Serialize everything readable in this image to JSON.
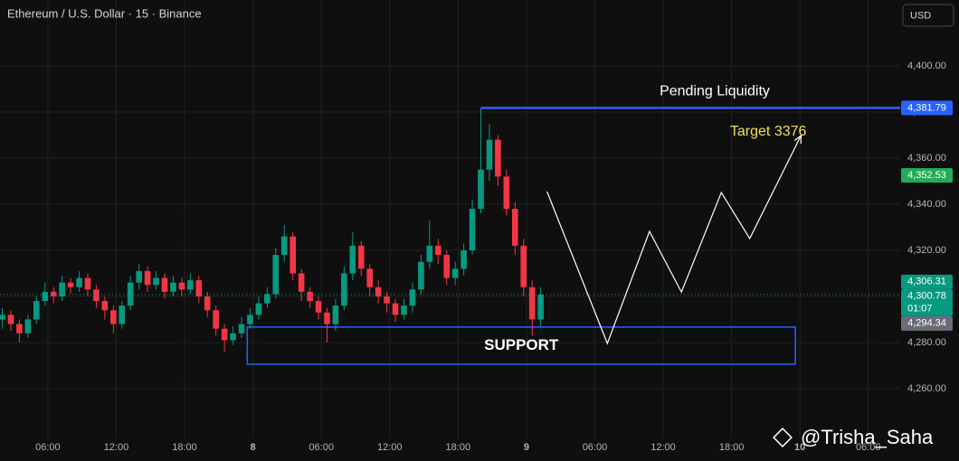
{
  "chart_data": {
    "type": "candlestick",
    "title": "Ethereum / U.S. Dollar · 15 · Binance",
    "currency_button": "USD",
    "xlim": [
      1.8,
      80.8
    ],
    "ylim": [
      4238.4,
      4428.6
    ],
    "xticks": [
      {
        "value": 6,
        "label": "06:00"
      },
      {
        "value": 12,
        "label": "12:00"
      },
      {
        "value": 18,
        "label": "18:00"
      },
      {
        "value": 24,
        "label": "8"
      },
      {
        "value": 30,
        "label": "06:00"
      },
      {
        "value": 36,
        "label": "12:00"
      },
      {
        "value": 42,
        "label": "18:00"
      },
      {
        "value": 48,
        "label": "9"
      },
      {
        "value": 54,
        "label": "06:00"
      },
      {
        "value": 60,
        "label": "12:00"
      },
      {
        "value": 66,
        "label": "18:00"
      },
      {
        "value": 72,
        "label": "10"
      },
      {
        "value": 78,
        "label": "06:00"
      }
    ],
    "yticks": [
      {
        "value": 4260,
        "label": "4,260.00"
      },
      {
        "value": 4280,
        "label": "4,280.00"
      },
      {
        "value": 4300,
        "label": "4,300.00"
      },
      {
        "value": 4320,
        "label": "4,320.00"
      },
      {
        "value": 4340,
        "label": "4,340.00"
      },
      {
        "value": 4360,
        "label": "4,360.00"
      },
      {
        "value": 4380,
        "label": "4,380.00"
      },
      {
        "value": 4400,
        "label": "4,400.00"
      }
    ],
    "grid": true,
    "up_color": "#089981",
    "down_color": "#f23645",
    "x": [
      2,
      2.75,
      3.5,
      4.25,
      5,
      5.75,
      6.5,
      7.25,
      8,
      8.75,
      9.5,
      10.25,
      11,
      11.75,
      12.5,
      13.25,
      14,
      14.75,
      15.5,
      16.25,
      17,
      17.75,
      18.5,
      19.25,
      20,
      20.75,
      21.5,
      22.25,
      23,
      23.75,
      24.5,
      25.25,
      26,
      26.75,
      27.5,
      28.25,
      29,
      29.75,
      30.5,
      31.25,
      32,
      32.75,
      33.5,
      34.25,
      35,
      35.75,
      36.5,
      37.25,
      38,
      38.75,
      39.5,
      40.25,
      41,
      41.75,
      42.5,
      43.25,
      44,
      44.75,
      45.5,
      46.25,
      47,
      47.75,
      48.5,
      49.25
    ],
    "open": [
      4290,
      4292,
      4288,
      4284,
      4290,
      4298,
      4302,
      4300,
      4306,
      4304,
      4308,
      4303,
      4298,
      4294,
      4288,
      4296,
      4306,
      4311,
      4305,
      4308,
      4302,
      4306,
      4303,
      4307,
      4300,
      4294,
      4286,
      4281,
      4284,
      4288,
      4292,
      4297,
      4301,
      4318,
      4326,
      4310,
      4302,
      4298,
      4293,
      4288,
      4296,
      4310,
      4322,
      4312,
      4304,
      4300,
      4297,
      4292,
      4296,
      4303,
      4315,
      4322,
      4318,
      4308,
      4312,
      4320,
      4338,
      4355,
      4368,
      4352,
      4338,
      4322,
      4304,
      4290
    ],
    "high": [
      4295,
      4294,
      4290,
      4292,
      4300,
      4306,
      4304,
      4309,
      4308,
      4311,
      4310,
      4305,
      4300,
      4296,
      4298,
      4309,
      4314,
      4313,
      4311,
      4310,
      4309,
      4308,
      4310,
      4309,
      4302,
      4296,
      4288,
      4287,
      4291,
      4295,
      4300,
      4304,
      4321,
      4331,
      4328,
      4312,
      4304,
      4300,
      4295,
      4299,
      4313,
      4328,
      4324,
      4314,
      4307,
      4302,
      4299,
      4299,
      4306,
      4318,
      4333,
      4325,
      4320,
      4315,
      4323,
      4342,
      4381.79,
      4375,
      4370,
      4355,
      4341,
      4325,
      4307,
      4304
    ],
    "low": [
      4286,
      4285,
      4280,
      4282,
      4288,
      4296,
      4297,
      4298,
      4301,
      4302,
      4300,
      4295,
      4290,
      4284,
      4286,
      4294,
      4303,
      4302,
      4303,
      4299,
      4300,
      4300,
      4301,
      4297,
      4291,
      4283,
      4276,
      4279,
      4282,
      4286,
      4290,
      4295,
      4299,
      4315,
      4307,
      4298,
      4295,
      4290,
      4280,
      4285,
      4294,
      4307,
      4309,
      4300,
      4297,
      4293,
      4289,
      4290,
      4293,
      4301,
      4312,
      4314,
      4305,
      4305,
      4309,
      4318,
      4336,
      4350,
      4348,
      4335,
      4318,
      4300,
      4283,
      4287
    ],
    "close": [
      4292,
      4288,
      4284,
      4290,
      4298,
      4302,
      4300,
      4306,
      4304,
      4308,
      4303,
      4298,
      4294,
      4288,
      4296,
      4306,
      4311,
      4305,
      4308,
      4302,
      4306,
      4303,
      4307,
      4300,
      4294,
      4286,
      4281,
      4284,
      4288,
      4292,
      4297,
      4301,
      4318,
      4326,
      4310,
      4302,
      4298,
      4293,
      4288,
      4296,
      4310,
      4322,
      4312,
      4304,
      4300,
      4297,
      4292,
      4296,
      4303,
      4315,
      4322,
      4318,
      4308,
      4312,
      4320,
      4338,
      4355,
      4368,
      4352,
      4338,
      4322,
      4304,
      4290,
      4300.78
    ],
    "price_labels": [
      {
        "value": 4381.79,
        "label": "4,381.79",
        "color": "#2962ff"
      },
      {
        "value": 4352.53,
        "label": "4,352.53",
        "color": "#22ab58"
      },
      {
        "value": 4306.31,
        "label": "4,306.31",
        "color": "#089981"
      },
      {
        "value": 4300.78,
        "label": "4,300.78",
        "color": "#089981"
      },
      {
        "value": 4294.34,
        "label": "4,294.34",
        "color": "#6a6d78"
      }
    ],
    "countdown": "01:07",
    "liquidity": {
      "label": "Pending Liquidity",
      "level": 4381.79,
      "x_start": 44.0,
      "color": "#2962ff"
    },
    "support": {
      "label": "SUPPORT",
      "y_range": [
        4270.6,
        4286.7
      ],
      "x_range": [
        23.5,
        71.6
      ],
      "color": "#2962ff"
    },
    "projection": {
      "label": "Target 3376",
      "label_color": "#f0e050",
      "color": "#ffffff",
      "x": [
        49.8,
        55.1,
        58.8,
        61.6,
        65.1,
        67.6,
        72.1
      ],
      "y": [
        4345.5,
        4279.6,
        4328.2,
        4301.9,
        4345.1,
        4325.1,
        4369.8
      ]
    },
    "watermark": "@Trisha_Saha"
  }
}
